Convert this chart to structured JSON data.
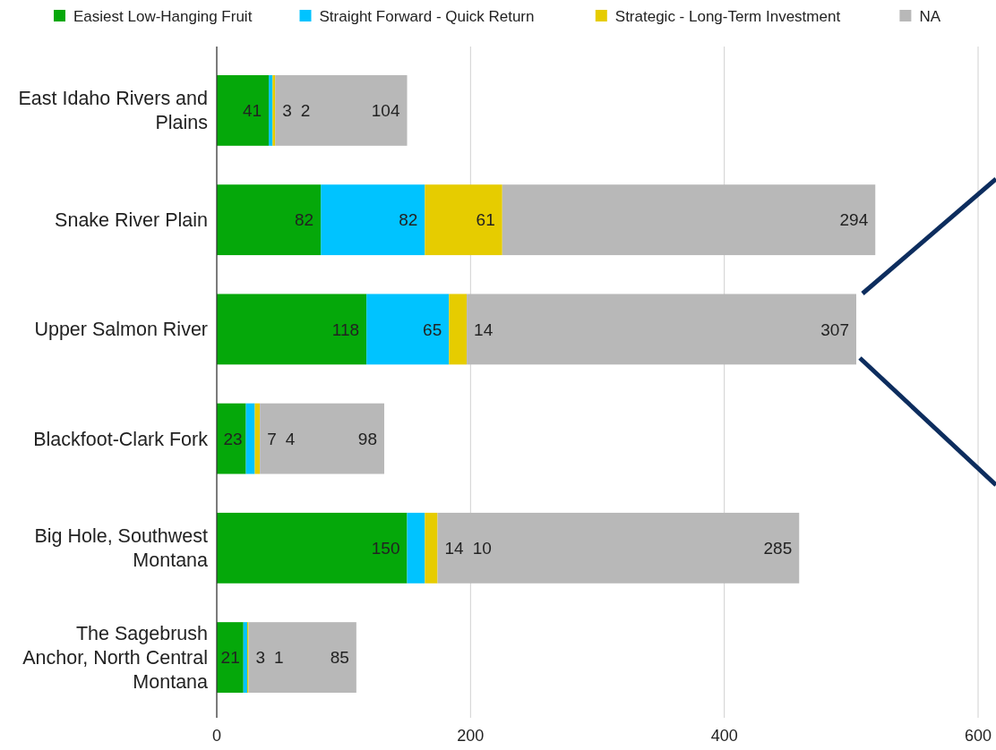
{
  "chart_data": {
    "type": "bar",
    "orientation": "horizontal",
    "stacked": true,
    "categories": [
      "East Idaho Rivers and Plains",
      "Snake River Plain",
      "Upper Salmon River",
      "Blackfoot-Clark Fork",
      "Big Hole, Southwest Montana",
      "The Sagebrush Anchor, North Central Montana"
    ],
    "series": [
      {
        "name": "Easiest Low-Hanging Fruit",
        "color": "#05a80a",
        "values": [
          41,
          82,
          118,
          23,
          150,
          21
        ]
      },
      {
        "name": "Straight Forward - Quick Return",
        "color": "#00c3ff",
        "values": [
          3,
          82,
          65,
          7,
          14,
          3
        ]
      },
      {
        "name": "Strategic - Long-Term Investment",
        "color": "#e6cc00",
        "values": [
          2,
          61,
          14,
          4,
          10,
          1
        ]
      },
      {
        "name": "NA",
        "color": "#b8b8b8",
        "values": [
          104,
          294,
          307,
          98,
          285,
          85
        ]
      }
    ],
    "xlim": [
      0,
      600
    ],
    "xticks": [
      0,
      200,
      400,
      600
    ],
    "grid": "x",
    "legend": "top",
    "data_labels": true
  }
}
